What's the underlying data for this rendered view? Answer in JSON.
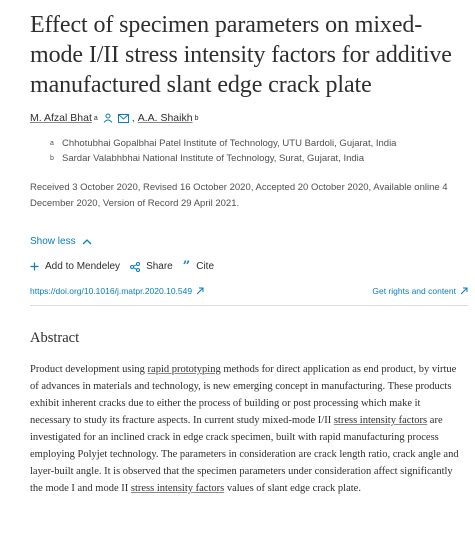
{
  "title": "Effect of specimen parameters on mixed-mode I/II stress intensity factors for additive manufactured slant edge crack plate",
  "authors": [
    {
      "name": "M. Afzal Bhat",
      "sup": "a"
    },
    {
      "name": "A.A. Shaikh",
      "sup": "b"
    }
  ],
  "author_separator": ",",
  "affiliations": [
    {
      "label": "a",
      "text": "Chhotubhai Gopalbhai Patel Institute of Technology, UTU Bardoli, Gujarat, India"
    },
    {
      "label": "b",
      "text": "Sardar Valabhbhai National Institute of Technology, Surat, Gujarat, India"
    }
  ],
  "dates": "Received 3 October 2020, Revised 16 October 2020, Accepted 20 October 2020, Available online 4 December 2020, Version of Record 29 April 2021.",
  "show_less": "Show less",
  "actions": {
    "mendeley": "Add to Mendeley",
    "share": "Share",
    "cite": "Cite"
  },
  "doi": "https://doi.org/10.1016/j.matpr.2020.10.549",
  "rights": "Get rights and content",
  "abstract_heading": "Abstract",
  "abstract": {
    "p1": "Product development using ",
    "l1": "rapid prototyping",
    "p2": " methods for direct application as end product, by virtue of advances in materials and technology, is new emerging concept in manufacturing. These products exhibit inherent cracks due to either the process of building or post processing which make it necessary to study its fracture aspects. In current study mixed-mode I/II ",
    "l2": "stress intensity factors",
    "p3": " are investigated for an inclined crack in edge crack specimen, built with rapid manufacturing process employing Polyjet technology. The parameters in consideration are crack length ratio, crack angle and layer-built angle. It is observed that the specimen parameters under consideration affect significantly the mode I and mode II ",
    "l3": "stress intensity factors",
    "p4": " values of slant edge crack plate."
  },
  "colors": {
    "link": "#0c7dbb",
    "text": "#2e2e2e",
    "muted": "#505050"
  },
  "icons": [
    "person-icon",
    "email-icon",
    "chevron-up-icon",
    "plus-icon",
    "share-icon",
    "quote-icon",
    "external-link-icon"
  ]
}
